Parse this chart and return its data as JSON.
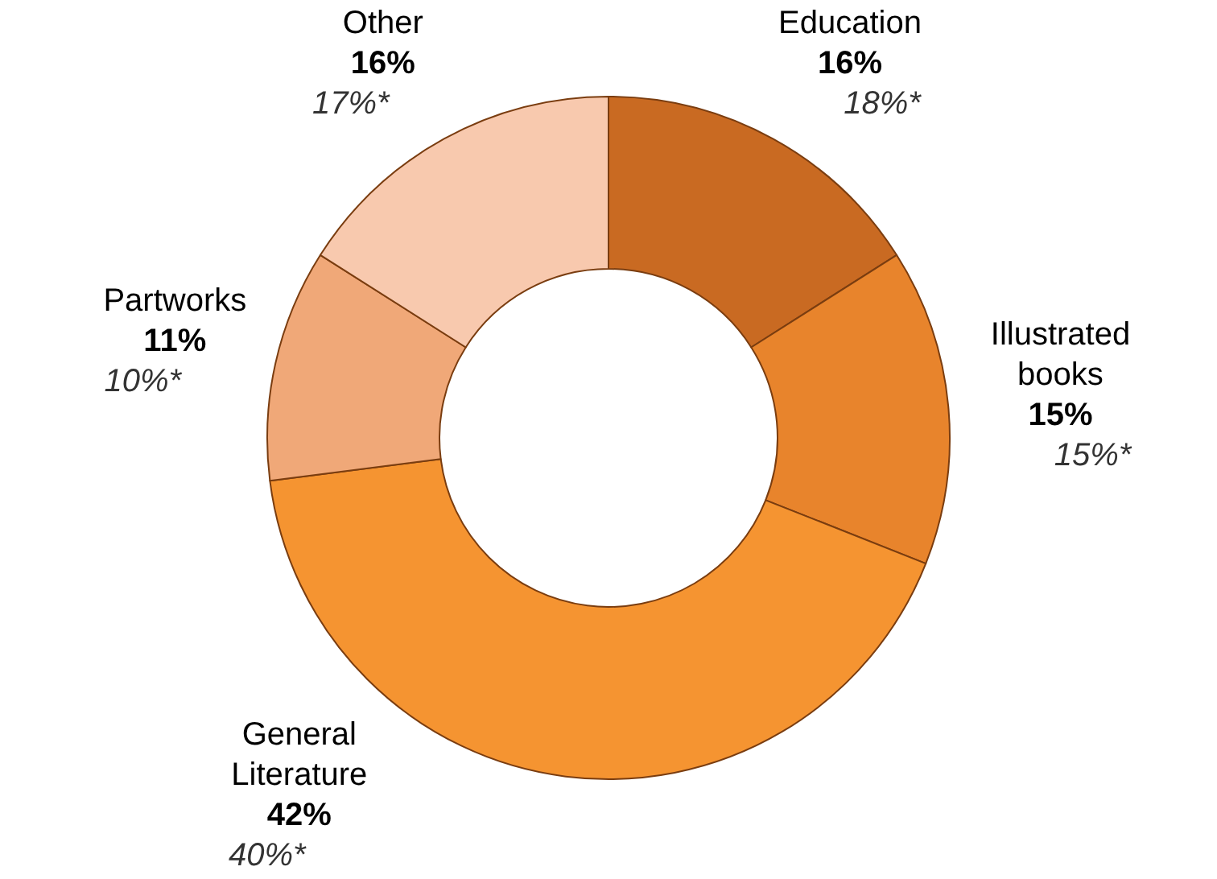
{
  "chart_data": {
    "type": "donut",
    "categories": [
      "Education",
      "Illustrated books",
      "General Literature",
      "Partworks",
      "Other"
    ],
    "values": [
      16,
      15,
      42,
      11,
      16
    ],
    "value_labels": [
      "16%",
      "15%",
      "42%",
      "11%",
      "16%"
    ],
    "colors": [
      "#c96a22",
      "#e8842c",
      "#f59431",
      "#f0a878",
      "#f8c9ae"
    ],
    "legend": false,
    "annotations": [
      "18%*",
      "15%*",
      "40%*",
      "10%*",
      "17%*"
    ]
  }
}
